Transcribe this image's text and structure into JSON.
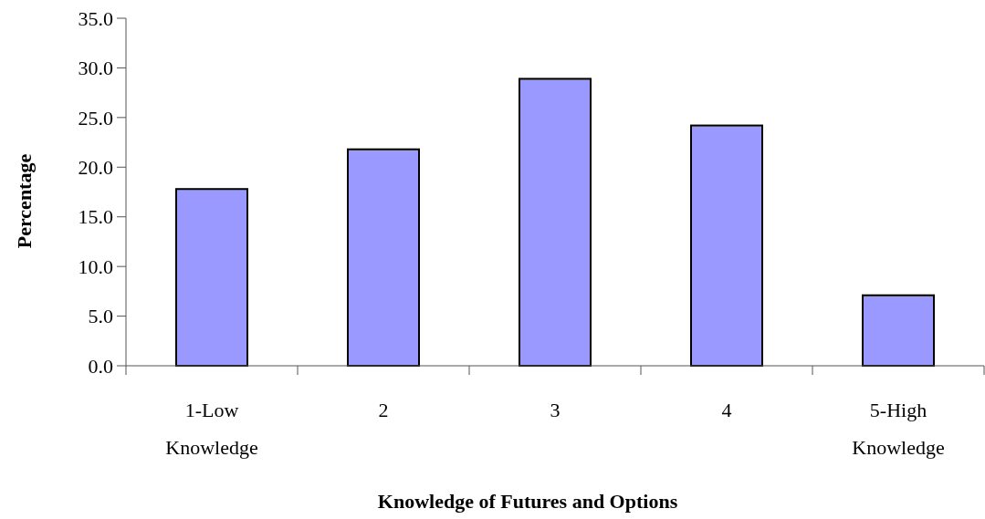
{
  "chart_data": {
    "type": "bar",
    "xlabel": "Knowledge of Futures and Options",
    "ylabel": "Percentage",
    "categories": [
      "1-Low Knowledge",
      "2",
      "3",
      "4",
      "5-High Knowledge"
    ],
    "values": [
      17.8,
      21.8,
      28.9,
      24.2,
      7.1
    ],
    "color": "#9999ff",
    "ylim": [
      0,
      35
    ],
    "yticks": [
      {
        "value": 0,
        "label": "0.0"
      },
      {
        "value": 5,
        "label": "5.0"
      },
      {
        "value": 10,
        "label": "10.0"
      },
      {
        "value": 15,
        "label": "15.0"
      },
      {
        "value": 20,
        "label": "20.0"
      },
      {
        "value": 25,
        "label": "25.0"
      },
      {
        "value": 30,
        "label": "30.0"
      },
      {
        "value": 35,
        "label": "35.0"
      }
    ]
  }
}
